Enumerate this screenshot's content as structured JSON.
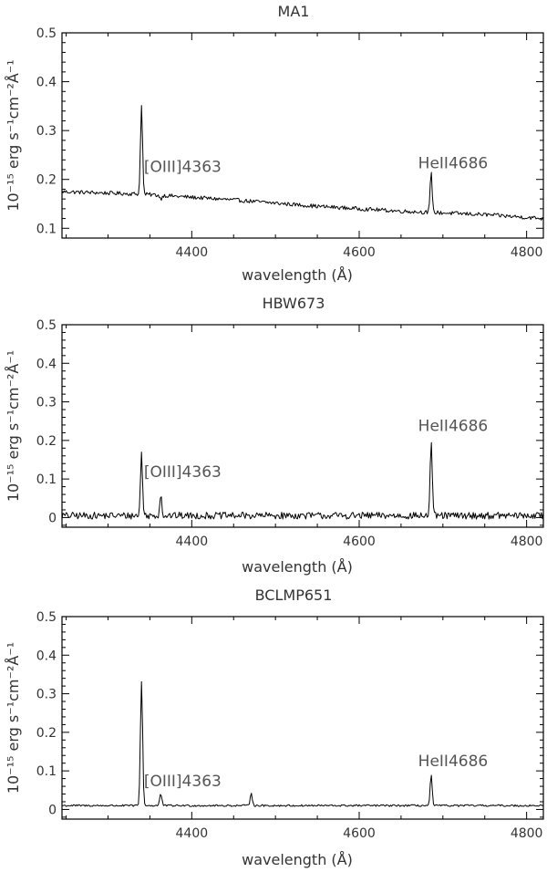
{
  "chart_data": [
    {
      "type": "line",
      "title": "MA1",
      "xlabel": "wavelength (Å)",
      "ylabel": "10⁻¹⁵ erg s⁻¹cm⁻²Å⁻¹",
      "xlim": [
        4245,
        4820
      ],
      "ylim": [
        0.08,
        0.5
      ],
      "xticks": [
        4400,
        4600,
        4800
      ],
      "yticks": [
        0.1,
        0.2,
        0.3,
        0.4,
        0.5
      ],
      "ytick_labels": [
        "0.1",
        "0.2",
        "0.3",
        "0.4",
        "0.5"
      ],
      "grid": false,
      "continuum": [
        [
          4245,
          0.175
        ],
        [
          4340,
          0.17
        ],
        [
          4450,
          0.158
        ],
        [
          4550,
          0.145
        ],
        [
          4650,
          0.135
        ],
        [
          4750,
          0.128
        ],
        [
          4820,
          0.12
        ]
      ],
      "noise": 0.004,
      "lines": [
        {
          "center": 4340,
          "peak": 0.355,
          "width": 1.2
        },
        {
          "center": 4363,
          "peak": 0.16,
          "width": 1.2
        },
        {
          "center": 4686,
          "peak": 0.213,
          "width": 1.2
        }
      ],
      "annotations": [
        {
          "text": "[OIII]4363",
          "x": 4363,
          "y": 0.215
        },
        {
          "text": "HeII4686",
          "x": 4686,
          "y": 0.223
        }
      ]
    },
    {
      "type": "line",
      "title": "HBW673",
      "xlabel": "wavelength (Å)",
      "ylabel": "10⁻¹⁵ erg s⁻¹cm⁻²Å⁻¹",
      "xlim": [
        4245,
        4820
      ],
      "ylim": [
        -0.025,
        0.5
      ],
      "xticks": [
        4400,
        4600,
        4800
      ],
      "yticks": [
        0,
        0.1,
        0.2,
        0.3,
        0.4,
        0.5
      ],
      "ytick_labels": [
        "0",
        "0.1",
        "0.2",
        "0.3",
        "0.4",
        "0.5"
      ],
      "grid": false,
      "continuum": [
        [
          4245,
          0.005
        ],
        [
          4820,
          0.005
        ]
      ],
      "noise": 0.009,
      "lines": [
        {
          "center": 4340,
          "peak": 0.168,
          "width": 1.2
        },
        {
          "center": 4363,
          "peak": 0.06,
          "width": 1.2
        },
        {
          "center": 4686,
          "peak": 0.2,
          "width": 1.2
        }
      ],
      "annotations": [
        {
          "text": "[OIII]4363",
          "x": 4363,
          "y": 0.105
        },
        {
          "text": "HeII4686",
          "x": 4686,
          "y": 0.225
        }
      ]
    },
    {
      "type": "line",
      "title": "BCLMP651",
      "xlabel": "wavelength (Å)",
      "ylabel": "10⁻¹⁵ erg s⁻¹cm⁻²Å⁻¹",
      "xlim": [
        4245,
        4820
      ],
      "ylim": [
        -0.025,
        0.5
      ],
      "xticks": [
        4400,
        4600,
        4800
      ],
      "yticks": [
        0,
        0.1,
        0.2,
        0.3,
        0.4,
        0.5
      ],
      "ytick_labels": [
        "0",
        "0.1",
        "0.2",
        "0.3",
        "0.4",
        "0.5"
      ],
      "grid": false,
      "continuum": [
        [
          4245,
          0.01
        ],
        [
          4820,
          0.01
        ]
      ],
      "noise": 0.0025,
      "lines": [
        {
          "center": 4340,
          "peak": 0.333,
          "width": 1.3
        },
        {
          "center": 4363,
          "peak": 0.04,
          "width": 1.3
        },
        {
          "center": 4471,
          "peak": 0.045,
          "width": 1.2
        },
        {
          "center": 4686,
          "peak": 0.088,
          "width": 1.2
        }
      ],
      "annotations": [
        {
          "text": "[OIII]4363",
          "x": 4363,
          "y": 0.06
        },
        {
          "text": "HeII4686",
          "x": 4686,
          "y": 0.112
        }
      ]
    }
  ]
}
